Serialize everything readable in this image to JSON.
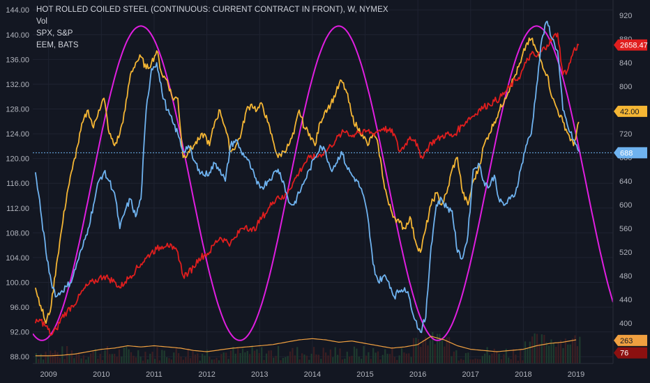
{
  "legend": {
    "title": "HOT ROLLED COILED STEEL (CONTINUOUS: CURRENT CONTRACT IN FRONT), W, NYMEX",
    "vol": "Vol",
    "spx": "SPX, S&P",
    "eem": "EEM, BATS"
  },
  "colors": {
    "background": "#131722",
    "grid": "#1f2331",
    "steel": "#6fb3f0",
    "spx": "#e01e1e",
    "eem": "#f5b634",
    "cycle": "#e01ee0",
    "volume_line": "#f0a040",
    "badge_spx": "#e01e1e",
    "badge_eem": "#f5b634",
    "badge_steel": "#6fb3f0",
    "badge_vol": "#f0a040",
    "badge_red": "#8c1010"
  },
  "chart_data": {
    "type": "line",
    "title": "HOT ROLLED COILED STEEL (CONTINUOUS: CURRENT CONTRACT IN FRONT), W, NYMEX",
    "x_ticks": [
      "2009",
      "2010",
      "2011",
      "2012",
      "2013",
      "2014",
      "2015",
      "2016",
      "2017",
      "2018",
      "2019"
    ],
    "x_range": [
      2008.7,
      2019.7
    ],
    "left_axis": {
      "ticks": [
        "144.00",
        "140.00",
        "136.00",
        "132.00",
        "128.00",
        "124.00",
        "120.00",
        "116.00",
        "112.00",
        "108.00",
        "104.00",
        "100.00",
        "96.00",
        "92.00",
        "88.00"
      ],
      "range": [
        86.9,
        145.6
      ]
    },
    "right_axis": {
      "ticks": [
        "920",
        "880",
        "840",
        "800",
        "760",
        "720",
        "680",
        "640",
        "600",
        "560",
        "520",
        "480",
        "440",
        "400"
      ],
      "range": [
        332,
        946
      ]
    },
    "badges": [
      {
        "label": "2658.47",
        "value": 870,
        "series": "SPX"
      },
      {
        "label": "42.00",
        "value": 758,
        "series": "EEM"
      },
      {
        "label": "688",
        "value": 688,
        "series": "Steel"
      },
      {
        "label": "263",
        "value": 371,
        "series": "Vol"
      },
      {
        "label": "76",
        "value": 350,
        "series": "Vol"
      }
    ],
    "reference_line": {
      "value": 688
    },
    "series": [
      {
        "name": "HOT ROLLED COILED STEEL",
        "axis": "right",
        "x": [
          2008.75,
          2008.85,
          2008.95,
          2009.05,
          2009.15,
          2009.25,
          2009.35,
          2009.45,
          2009.55,
          2009.65,
          2009.75,
          2009.85,
          2009.95,
          2010.05,
          2010.15,
          2010.25,
          2010.35,
          2010.45,
          2010.55,
          2010.65,
          2010.75,
          2010.85,
          2010.95,
          2011.05,
          2011.15,
          2011.25,
          2011.35,
          2011.45,
          2011.55,
          2011.65,
          2011.75,
          2011.85,
          2011.95,
          2012.05,
          2012.15,
          2012.25,
          2012.35,
          2012.45,
          2012.55,
          2012.65,
          2012.75,
          2012.85,
          2012.95,
          2013.05,
          2013.15,
          2013.25,
          2013.35,
          2013.45,
          2013.55,
          2013.65,
          2013.75,
          2013.85,
          2013.95,
          2014.05,
          2014.15,
          2014.25,
          2014.35,
          2014.45,
          2014.55,
          2014.65,
          2014.75,
          2014.85,
          2014.95,
          2015.05,
          2015.15,
          2015.25,
          2015.35,
          2015.45,
          2015.55,
          2015.65,
          2015.75,
          2015.85,
          2015.95,
          2016.05,
          2016.15,
          2016.25,
          2016.35,
          2016.45,
          2016.55,
          2016.65,
          2016.75,
          2016.85,
          2016.95,
          2017.05,
          2017.15,
          2017.25,
          2017.35,
          2017.45,
          2017.55,
          2017.65,
          2017.75,
          2017.85,
          2017.95,
          2018.05,
          2018.15,
          2018.25,
          2018.35,
          2018.45,
          2018.55,
          2018.65,
          2018.75,
          2018.85,
          2018.95,
          2019.05
        ],
        "values": [
          655,
          590,
          520,
          470,
          445,
          455,
          462,
          475,
          505,
          530,
          560,
          600,
          640,
          655,
          640,
          620,
          560,
          590,
          610,
          580,
          610,
          760,
          830,
          840,
          790,
          760,
          740,
          720,
          690,
          700,
          675,
          660,
          650,
          655,
          670,
          660,
          640,
          700,
          710,
          690,
          680,
          660,
          635,
          630,
          640,
          650,
          660,
          640,
          605,
          600,
          620,
          640,
          660,
          680,
          700,
          690,
          660,
          670,
          690,
          665,
          650,
          640,
          620,
          580,
          500,
          470,
          480,
          470,
          445,
          455,
          460,
          440,
          405,
          385,
          410,
          530,
          600,
          610,
          595,
          590,
          520,
          510,
          550,
          660,
          670,
          640,
          630,
          650,
          605,
          600,
          610,
          620,
          660,
          700,
          720,
          800,
          880,
          910,
          880,
          860,
          760,
          730,
          710,
          690
        ]
      },
      {
        "name": "SPX, S&P",
        "axis": "right",
        "x": [
          2008.75,
          2008.85,
          2008.95,
          2009.05,
          2009.15,
          2009.25,
          2009.35,
          2009.45,
          2009.55,
          2009.65,
          2009.75,
          2009.85,
          2009.95,
          2010.05,
          2010.15,
          2010.25,
          2010.35,
          2010.45,
          2010.55,
          2010.65,
          2010.75,
          2010.85,
          2010.95,
          2011.05,
          2011.15,
          2011.25,
          2011.35,
          2011.45,
          2011.55,
          2011.65,
          2011.75,
          2011.85,
          2011.95,
          2012.05,
          2012.15,
          2012.25,
          2012.35,
          2012.45,
          2012.55,
          2012.65,
          2012.75,
          2012.85,
          2012.95,
          2013.05,
          2013.15,
          2013.25,
          2013.35,
          2013.45,
          2013.55,
          2013.65,
          2013.75,
          2013.85,
          2013.95,
          2014.05,
          2014.15,
          2014.25,
          2014.35,
          2014.45,
          2014.55,
          2014.65,
          2014.75,
          2014.85,
          2014.95,
          2015.05,
          2015.15,
          2015.25,
          2015.35,
          2015.45,
          2015.55,
          2015.65,
          2015.75,
          2015.85,
          2015.95,
          2016.05,
          2016.15,
          2016.25,
          2016.35,
          2016.45,
          2016.55,
          2016.65,
          2016.75,
          2016.85,
          2016.95,
          2017.05,
          2017.15,
          2017.25,
          2017.35,
          2017.45,
          2017.55,
          2017.65,
          2017.75,
          2017.85,
          2017.95,
          2018.05,
          2018.15,
          2018.25,
          2018.35,
          2018.45,
          2018.55,
          2018.65,
          2018.75,
          2018.85,
          2018.95,
          2019.05
        ],
        "values": [
          400,
          405,
          395,
          380,
          390,
          410,
          420,
          430,
          440,
          455,
          465,
          470,
          475,
          480,
          475,
          470,
          460,
          470,
          480,
          490,
          500,
          510,
          520,
          525,
          530,
          535,
          525,
          520,
          480,
          485,
          495,
          510,
          515,
          520,
          535,
          545,
          540,
          535,
          545,
          560,
          565,
          555,
          565,
          580,
          590,
          605,
          615,
          610,
          625,
          640,
          655,
          670,
          680,
          680,
          685,
          690,
          700,
          710,
          720,
          725,
          715,
          725,
          720,
          725,
          720,
          725,
          730,
          725,
          720,
          690,
          700,
          715,
          710,
          680,
          690,
          705,
          710,
          715,
          720,
          715,
          725,
          735,
          745,
          750,
          760,
          765,
          770,
          775,
          780,
          790,
          800,
          810,
          820,
          840,
          855,
          850,
          860,
          870,
          880,
          890,
          820,
          830,
          860,
          870
        ]
      },
      {
        "name": "EEM, BATS",
        "axis": "right",
        "x": [
          2008.75,
          2008.85,
          2008.95,
          2009.05,
          2009.15,
          2009.25,
          2009.35,
          2009.45,
          2009.55,
          2009.65,
          2009.75,
          2009.85,
          2009.95,
          2010.05,
          2010.15,
          2010.25,
          2010.35,
          2010.45,
          2010.55,
          2010.65,
          2010.75,
          2010.85,
          2010.95,
          2011.05,
          2011.15,
          2011.25,
          2011.35,
          2011.45,
          2011.55,
          2011.65,
          2011.75,
          2011.85,
          2011.95,
          2012.05,
          2012.15,
          2012.25,
          2012.35,
          2012.45,
          2012.55,
          2012.65,
          2012.75,
          2012.85,
          2012.95,
          2013.05,
          2013.15,
          2013.25,
          2013.35,
          2013.45,
          2013.55,
          2013.65,
          2013.75,
          2013.85,
          2013.95,
          2014.05,
          2014.15,
          2014.25,
          2014.35,
          2014.45,
          2014.55,
          2014.65,
          2014.75,
          2014.85,
          2014.95,
          2015.05,
          2015.15,
          2015.25,
          2015.35,
          2015.45,
          2015.55,
          2015.65,
          2015.75,
          2015.85,
          2015.95,
          2016.05,
          2016.15,
          2016.25,
          2016.35,
          2016.45,
          2016.55,
          2016.65,
          2016.75,
          2016.85,
          2016.95,
          2017.05,
          2017.15,
          2017.25,
          2017.35,
          2017.45,
          2017.55,
          2017.65,
          2017.75,
          2017.85,
          2017.95,
          2018.05,
          2018.15,
          2018.25,
          2018.35,
          2018.45,
          2018.55,
          2018.65,
          2018.75,
          2018.85,
          2018.95,
          2019.05
        ],
        "values": [
          460,
          430,
          400,
          430,
          500,
          560,
          620,
          660,
          700,
          740,
          760,
          730,
          760,
          780,
          720,
          700,
          720,
          760,
          820,
          840,
          850,
          830,
          840,
          860,
          820,
          810,
          780,
          780,
          680,
          690,
          700,
          710,
          720,
          700,
          740,
          760,
          730,
          690,
          700,
          720,
          760,
          770,
          760,
          770,
          740,
          710,
          680,
          690,
          700,
          720,
          760,
          730,
          720,
          700,
          740,
          760,
          770,
          790,
          810,
          790,
          750,
          730,
          720,
          700,
          720,
          700,
          640,
          600,
          580,
          570,
          560,
          580,
          540,
          520,
          560,
          600,
          620,
          600,
          620,
          660,
          680,
          620,
          600,
          640,
          660,
          700,
          720,
          740,
          760,
          780,
          800,
          820,
          840,
          870,
          880,
          860,
          840,
          820,
          780,
          760,
          740,
          720,
          700,
          740
        ]
      },
      {
        "name": "Cycle",
        "axis": "right",
        "type": "sine",
        "min_value": 371,
        "max_value": 902,
        "peaks": [
          2010.75,
          2014.5,
          2018.3
        ],
        "x_start": 2008.7,
        "x_end": 2019.7
      },
      {
        "name": "Vol",
        "axis": "right",
        "x": [
          2008.75,
          2009.0,
          2009.25,
          2009.5,
          2009.75,
          2010.0,
          2010.25,
          2010.5,
          2010.75,
          2011.0,
          2011.25,
          2011.5,
          2011.75,
          2012.0,
          2012.25,
          2012.5,
          2012.75,
          2013.0,
          2013.25,
          2013.5,
          2013.75,
          2014.0,
          2014.25,
          2014.5,
          2014.75,
          2015.0,
          2015.25,
          2015.5,
          2015.75,
          2016.0,
          2016.25,
          2016.5,
          2016.75,
          2017.0,
          2017.25,
          2017.5,
          2017.75,
          2018.0,
          2018.25,
          2018.5,
          2018.75,
          2019.0
        ],
        "values": [
          345,
          345,
          346,
          348,
          352,
          356,
          358,
          362,
          360,
          362,
          360,
          358,
          354,
          352,
          355,
          358,
          360,
          362,
          364,
          368,
          372,
          374,
          372,
          368,
          370,
          366,
          362,
          358,
          360,
          364,
          378,
          372,
          362,
          356,
          354,
          352,
          354,
          356,
          362,
          366,
          368,
          372
        ]
      }
    ]
  }
}
